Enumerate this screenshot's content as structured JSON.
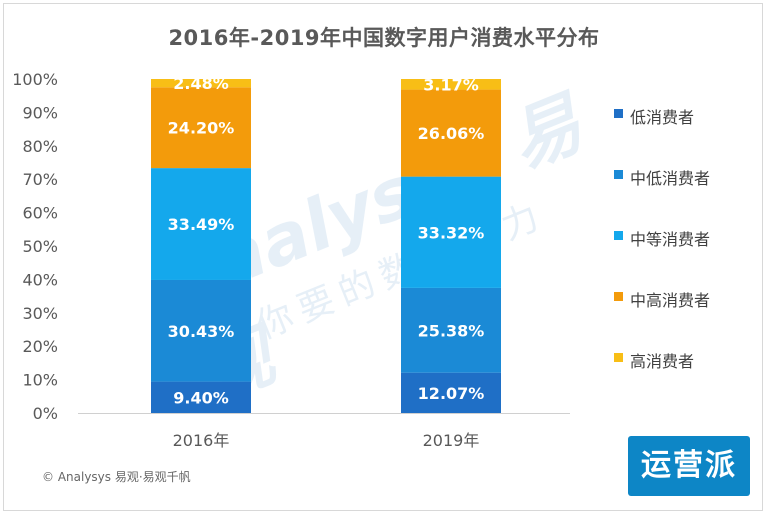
{
  "title": "2016年-2019年中国数字用户消费水平分布",
  "source": "© Analysys 易观·易观千帆",
  "badge": "运营派",
  "watermark": {
    "line1": "Analysys 易观",
    "line2": "你要的数据能力"
  },
  "chart_data": {
    "type": "bar",
    "stacked": true,
    "categories": [
      "2016年",
      "2019年"
    ],
    "ylim": [
      0,
      100
    ],
    "yticks": [
      0,
      10,
      20,
      30,
      40,
      50,
      60,
      70,
      80,
      90,
      100
    ],
    "ytick_labels": [
      "0%",
      "10%",
      "20%",
      "30%",
      "40%",
      "50%",
      "60%",
      "70%",
      "80%",
      "90%",
      "100%"
    ],
    "grid": false,
    "legend_position": "right",
    "series": [
      {
        "name": "低消费者",
        "color": "#1f6fc6",
        "values": [
          9.4,
          12.07
        ],
        "labels": [
          "9.40%",
          "12.07%"
        ]
      },
      {
        "name": "中低消费者",
        "color": "#1b8ad6",
        "values": [
          30.43,
          25.38
        ],
        "labels": [
          "30.43%",
          "25.38%"
        ]
      },
      {
        "name": "中等消费者",
        "color": "#14a8ec",
        "values": [
          33.49,
          33.32
        ],
        "labels": [
          "33.49%",
          "33.32%"
        ]
      },
      {
        "name": "中高消费者",
        "color": "#f39b0b",
        "values": [
          24.2,
          26.06
        ],
        "labels": [
          "24.20%",
          "26.06%"
        ]
      },
      {
        "name": "高消费者",
        "color": "#f8be16",
        "values": [
          2.48,
          3.17
        ],
        "labels": [
          "2.48%",
          "3.17%"
        ]
      }
    ]
  }
}
